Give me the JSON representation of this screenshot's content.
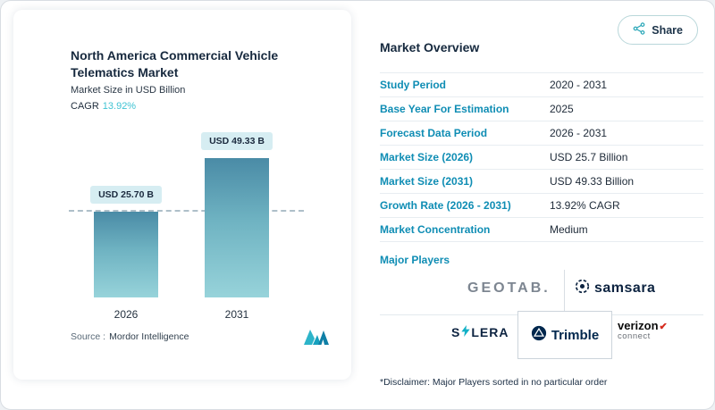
{
  "share": {
    "label": "Share"
  },
  "chart": {
    "title": "North America Commercial Vehicle Telematics Market",
    "subtitle": "Market Size in USD Billion",
    "cagr_label": "CAGR",
    "cagr_value": "13.92%",
    "source_label": "Source :",
    "source_value": "Mordor Intelligence"
  },
  "chart_data": {
    "type": "bar",
    "categories": [
      "2026",
      "2031"
    ],
    "values": [
      25.7,
      49.33
    ],
    "value_labels": [
      "USD 25.70 B",
      "USD 49.33 B"
    ],
    "title": "North America Commercial Vehicle Telematics Market",
    "xlabel": "",
    "ylabel": "Market Size in USD Billion",
    "ylim": [
      0,
      49.33
    ],
    "grid": "dashed horizontal reference line at first bar value (25.70)",
    "reference_line_at": 25.7,
    "bar_color_top": "#4a8ba6",
    "bar_color_bottom": "#97d3da",
    "cagr": "13.92%"
  },
  "overview": {
    "heading": "Market Overview",
    "rows": [
      {
        "label": "Study Period",
        "value": "2020 - 2031"
      },
      {
        "label": "Base Year For Estimation",
        "value": "2025"
      },
      {
        "label": "Forecast Data Period",
        "value": "2026 - 2031"
      },
      {
        "label": "Market Size (2026)",
        "value": "USD 25.7 Billion"
      },
      {
        "label": "Market Size (2031)",
        "value": "USD 49.33 Billion"
      },
      {
        "label": "Growth Rate (2026 - 2031)",
        "value": "13.92% CAGR"
      },
      {
        "label": "Market Concentration",
        "value": "Medium"
      }
    ],
    "major_players_label": "Major Players",
    "players": {
      "geotab": "GEOTAB.",
      "samsara": "samsara",
      "solera_prefix": "S",
      "solera_suffix": "LERA",
      "trimble": "Trimble",
      "verizon_line1": "verizon",
      "verizon_line2": "connect"
    },
    "disclaimer": "*Disclaimer: Major Players sorted in no particular order"
  },
  "colors": {
    "accent_teal": "#0f8db4",
    "cagr_teal": "#3fc3d3",
    "navy": "#16293e",
    "verizon_red": "#d52b1e"
  }
}
